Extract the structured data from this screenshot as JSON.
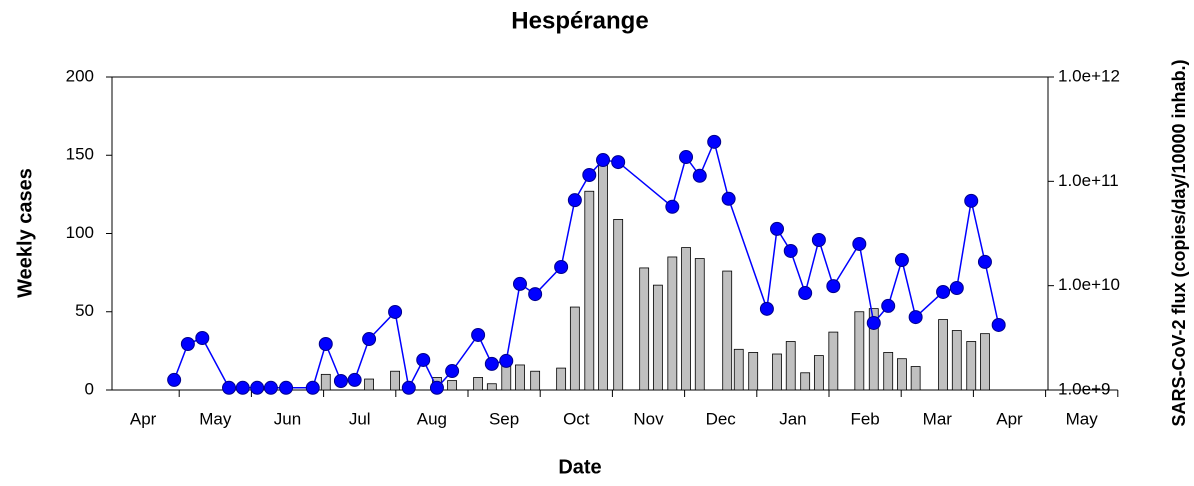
{
  "chart_data": {
    "type": "bar-line",
    "title": "Hespérange",
    "xlabel": "Date",
    "ylabel": "Weekly cases",
    "y2label": "SARS-CoV-2 flux (copies/day/10000 inhab.)",
    "categories": [
      "Apr",
      "May",
      "Jun",
      "Jul",
      "Aug",
      "Sep",
      "Oct",
      "Nov",
      "Dec",
      "Jan",
      "Feb",
      "Mar",
      "Apr",
      "May"
    ],
    "xlim": [
      0,
      14
    ],
    "ylim": [
      0,
      200
    ],
    "yticks": [
      0,
      50,
      100,
      150,
      200
    ],
    "y2lim": [
      1000000000,
      1000000000000
    ],
    "y2scale": "log",
    "y2ticks": [
      {
        "value": 1000000000,
        "label": "1.0e+9"
      },
      {
        "value": 10000000000,
        "label": "1.0e+10"
      },
      {
        "value": 100000000000,
        "label": "1.0e+11"
      },
      {
        "value": 1000000000000,
        "label": "1.0e+12"
      }
    ],
    "series": [
      {
        "type": "bar",
        "color": "#c0c0c0",
        "x": [
          3.03,
          3.63,
          3.99,
          4.57,
          4.78,
          5.14,
          5.33,
          5.53,
          5.72,
          5.93,
          6.29,
          6.48,
          6.68,
          6.87,
          7.08,
          7.44,
          7.63,
          7.83,
          8.02,
          8.21,
          8.59,
          8.75,
          8.95,
          9.28,
          9.47,
          9.67,
          9.86,
          10.06,
          10.42,
          10.62,
          10.82,
          11.01,
          11.2,
          11.58,
          11.77,
          11.97,
          12.16
        ],
        "values": [
          10,
          7,
          12,
          8,
          6,
          8,
          4,
          17,
          16,
          12,
          14,
          53,
          127,
          146,
          109,
          78,
          67,
          85,
          91,
          84,
          76,
          26,
          24,
          23,
          31,
          11,
          22,
          37,
          50,
          52,
          24,
          20,
          15,
          45,
          38,
          31,
          36
        ]
      },
      {
        "type": "line",
        "axis": "y2",
        "color": "#0000ff",
        "x": [
          0.93,
          1.12,
          1.32,
          1.69,
          1.88,
          2.08,
          2.27,
          2.48,
          2.85,
          3.03,
          3.24,
          3.43,
          3.63,
          3.99,
          4.18,
          4.38,
          4.57,
          4.78,
          5.14,
          5.33,
          5.53,
          5.72,
          5.93,
          6.29,
          6.48,
          6.68,
          6.87,
          7.08,
          7.83,
          8.02,
          8.21,
          8.41,
          8.61,
          9.14,
          9.28,
          9.47,
          9.67,
          9.86,
          10.06,
          10.42,
          10.62,
          10.82,
          11.01,
          11.2,
          11.58,
          11.77,
          11.97,
          12.16,
          12.35
        ],
        "values": [
          1250000000,
          2760000000,
          3150000000,
          1050000000,
          1050000000,
          1050000000,
          1050000000,
          1050000000,
          1050000000,
          2760000000,
          1220000000,
          1250000000,
          3080000000,
          5600000000,
          1050000000,
          1940000000,
          1050000000,
          1520000000,
          3370000000,
          1780000000,
          1900000000,
          10400000000,
          8300000000,
          15100000000,
          66000000000,
          115000000000,
          160000000000,
          153000000000,
          57000000000,
          171000000000,
          113000000000,
          239000000000,
          68000000000,
          6000000000,
          35000000000,
          21500000000,
          8500000000,
          27400000000,
          9900000000,
          25100000000,
          4390000000,
          6400000000,
          17600000000,
          5000000000,
          8700000000,
          9500000000,
          65000000000,
          16900000000,
          4200000000
        ]
      }
    ]
  }
}
